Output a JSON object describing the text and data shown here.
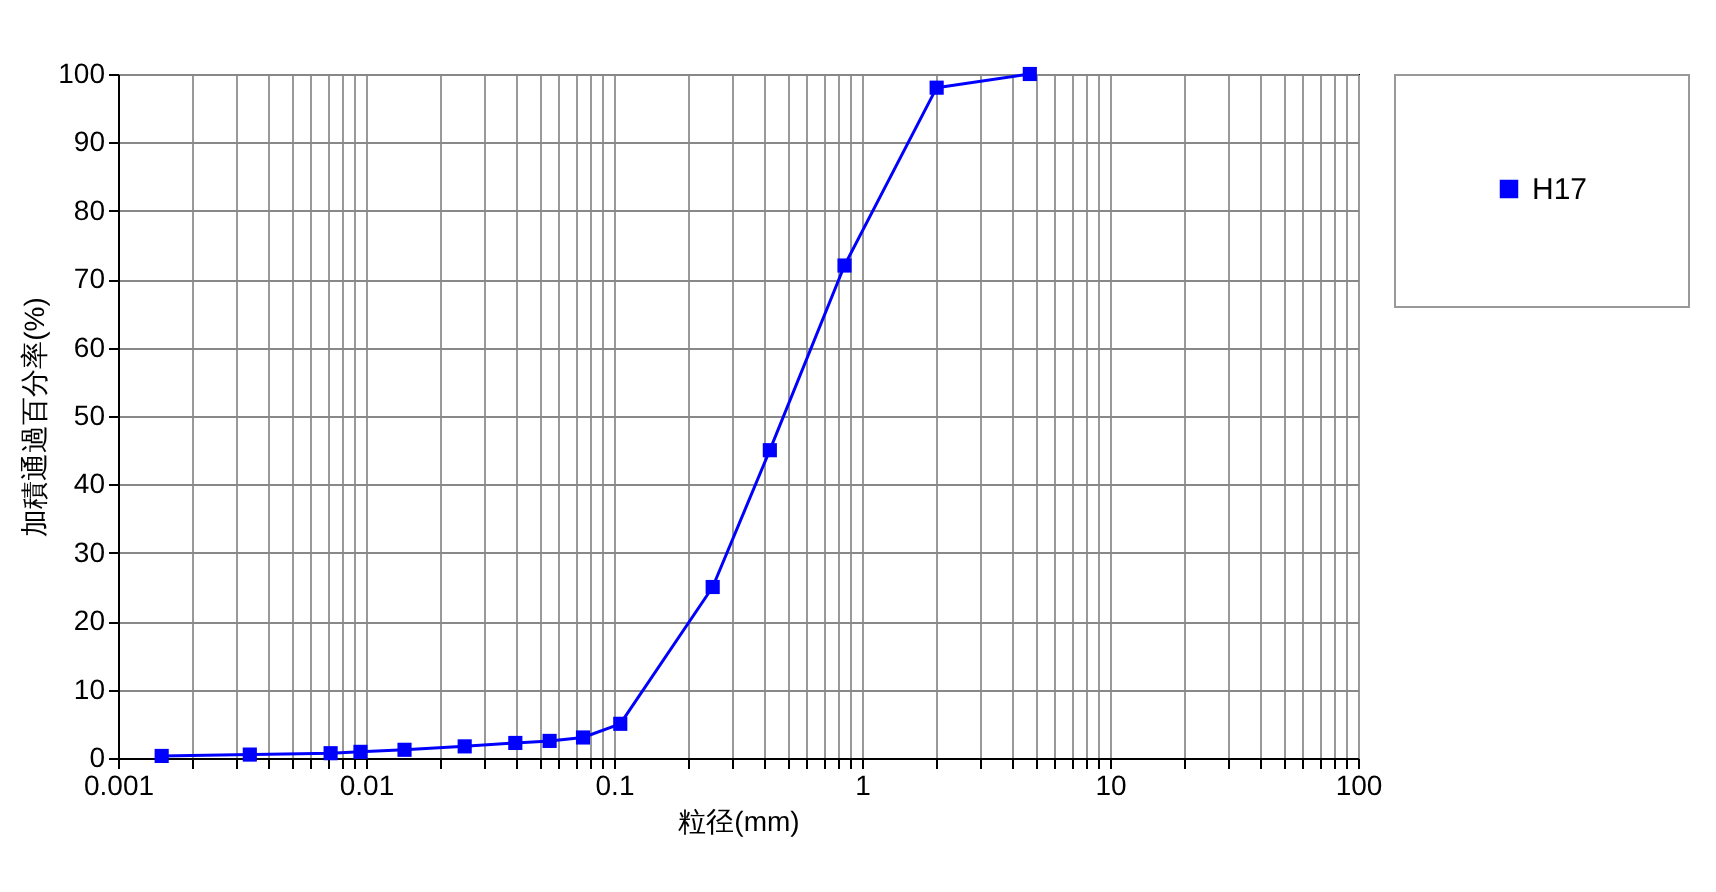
{
  "chart_data": {
    "type": "line",
    "xlabel": "粒径(mm)",
    "ylabel": "加積通過百分率(%)",
    "log": "x",
    "grid": true,
    "legend": "right",
    "marker": "square",
    "line_style": "solid",
    "xlim": [
      0.001,
      100
    ],
    "ylim": [
      0,
      100
    ],
    "xticks": [
      0.001,
      {
        "value": 0.002,
        "label": null
      },
      {
        "value": 0.003,
        "label": null
      },
      {
        "value": 0.004,
        "label": null
      },
      {
        "value": 0.005,
        "label": null
      },
      {
        "value": 0.006,
        "label": null
      },
      {
        "value": 0.007,
        "label": null
      },
      {
        "value": 0.008,
        "label": null
      },
      {
        "value": 0.009,
        "label": null
      },
      0.01,
      {
        "value": 0.02,
        "label": null
      },
      {
        "value": 0.03,
        "label": null
      },
      {
        "value": 0.04,
        "label": null
      },
      {
        "value": 0.05,
        "label": null
      },
      {
        "value": 0.06,
        "label": null
      },
      {
        "value": 0.07,
        "label": null
      },
      {
        "value": 0.08,
        "label": null
      },
      {
        "value": 0.09,
        "label": null
      },
      0.1,
      {
        "value": 0.2,
        "label": null
      },
      {
        "value": 0.3,
        "label": null
      },
      {
        "value": 0.4,
        "label": null
      },
      {
        "value": 0.5,
        "label": null
      },
      {
        "value": 0.6,
        "label": null
      },
      {
        "value": 0.7,
        "label": null
      },
      {
        "value": 0.8,
        "label": null
      },
      {
        "value": 0.9,
        "label": null
      },
      1,
      {
        "value": 2,
        "label": null
      },
      {
        "value": 3,
        "label": null
      },
      {
        "value": 4,
        "label": null
      },
      {
        "value": 5,
        "label": null
      },
      {
        "value": 6,
        "label": null
      },
      {
        "value": 7,
        "label": null
      },
      {
        "value": 8,
        "label": null
      },
      {
        "value": 9,
        "label": null
      },
      10,
      {
        "value": 20,
        "label": null
      },
      {
        "value": 30,
        "label": null
      },
      {
        "value": 40,
        "label": null
      },
      {
        "value": 50,
        "label": null
      },
      {
        "value": 60,
        "label": null
      },
      {
        "value": 70,
        "label": null
      },
      {
        "value": 80,
        "label": null
      },
      {
        "value": 90,
        "label": null
      },
      100
    ],
    "yticks": [
      0,
      10,
      20,
      30,
      40,
      50,
      60,
      70,
      80,
      90,
      100
    ],
    "x": [
      0.0015,
      0.0034,
      0.0072,
      0.0095,
      0.0143,
      0.025,
      0.04,
      0.055,
      0.075,
      0.106,
      0.25,
      0.425,
      0.85,
      2,
      4.75
    ],
    "series": [
      {
        "name": "H17",
        "color": "#0000ff",
        "values": [
          0.3,
          0.5,
          0.7,
          0.9,
          1.2,
          1.7,
          2.2,
          2.5,
          3,
          5,
          25,
          45,
          72,
          98,
          100
        ]
      }
    ]
  }
}
